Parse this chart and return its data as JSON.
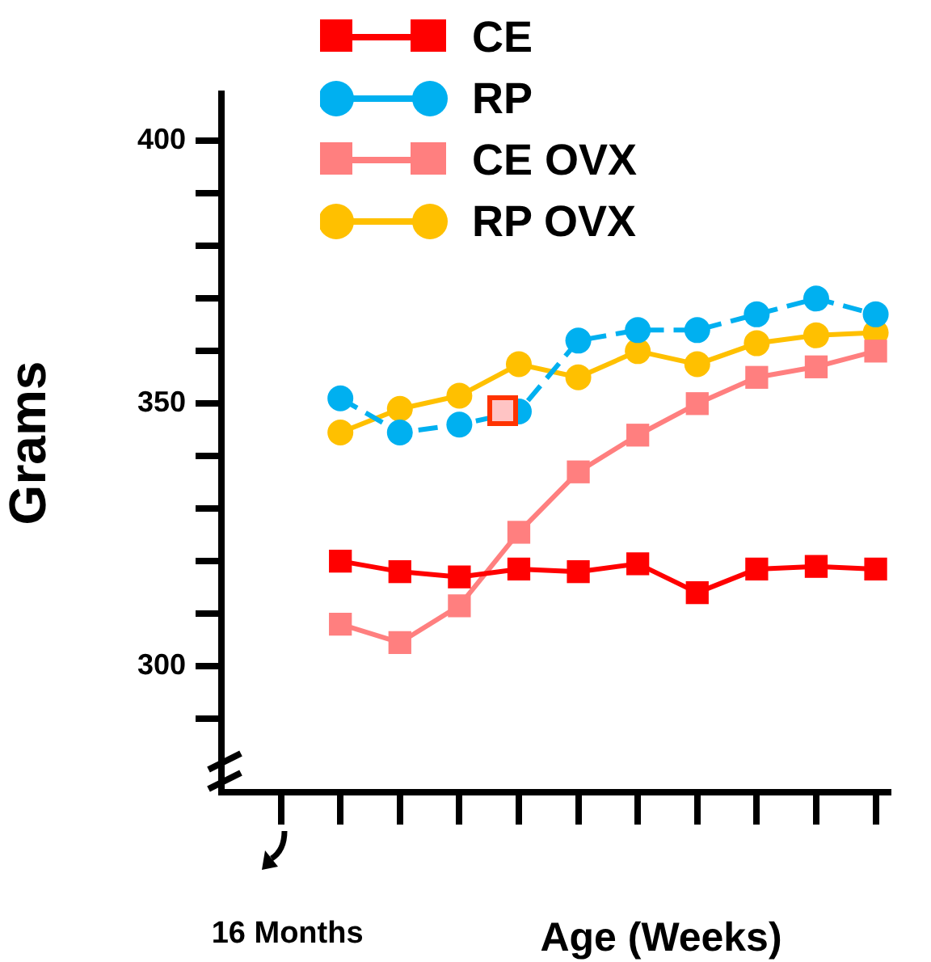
{
  "chart_data": {
    "type": "line",
    "xlabel": "Age (Weeks)",
    "ylabel": "Grams",
    "categories": [
      null,
      null,
      null,
      null,
      null,
      null,
      null,
      null,
      null,
      null,
      null
    ],
    "annotations": [
      "16 Months"
    ],
    "ylim": [
      276,
      409
    ],
    "yticks": [
      {
        "value": 290,
        "label": null
      },
      {
        "value": 300,
        "label": "300"
      },
      {
        "value": 310,
        "label": null
      },
      {
        "value": 320,
        "label": null
      },
      {
        "value": 330,
        "label": null
      },
      {
        "value": 340,
        "label": null
      },
      {
        "value": 350,
        "label": "350"
      },
      {
        "value": 360,
        "label": null
      },
      {
        "value": 370,
        "label": null
      },
      {
        "value": 380,
        "label": null
      },
      {
        "value": 390,
        "label": null
      },
      {
        "value": 400,
        "label": "400"
      }
    ],
    "grid": false,
    "legend": "top",
    "series": [
      {
        "name": "CE",
        "color": "#ff0000",
        "marker": "square",
        "line_style": "solid",
        "values": [
          null,
          320,
          318,
          317,
          318.5,
          318,
          319.5,
          314,
          318.5,
          319,
          318.5
        ]
      },
      {
        "name": "RP",
        "color": "#00b0f0",
        "marker": "circle",
        "line_style": "dashed",
        "values": [
          null,
          351,
          344.5,
          346,
          348.5,
          362,
          364,
          364,
          367,
          370,
          367
        ]
      },
      {
        "name": "CE OVX",
        "color": "#ff7f7f",
        "marker": "square",
        "line_style": "solid",
        "values": [
          null,
          308,
          304.5,
          311.5,
          325.5,
          337,
          344,
          350,
          355,
          357,
          360
        ]
      },
      {
        "name": "RP OVX",
        "color": "#ffc000",
        "marker": "circle",
        "line_style": "solid",
        "values": [
          null,
          344.5,
          349,
          351.5,
          357.5,
          355,
          360,
          357.5,
          361.5,
          363,
          363.5
        ]
      }
    ]
  }
}
